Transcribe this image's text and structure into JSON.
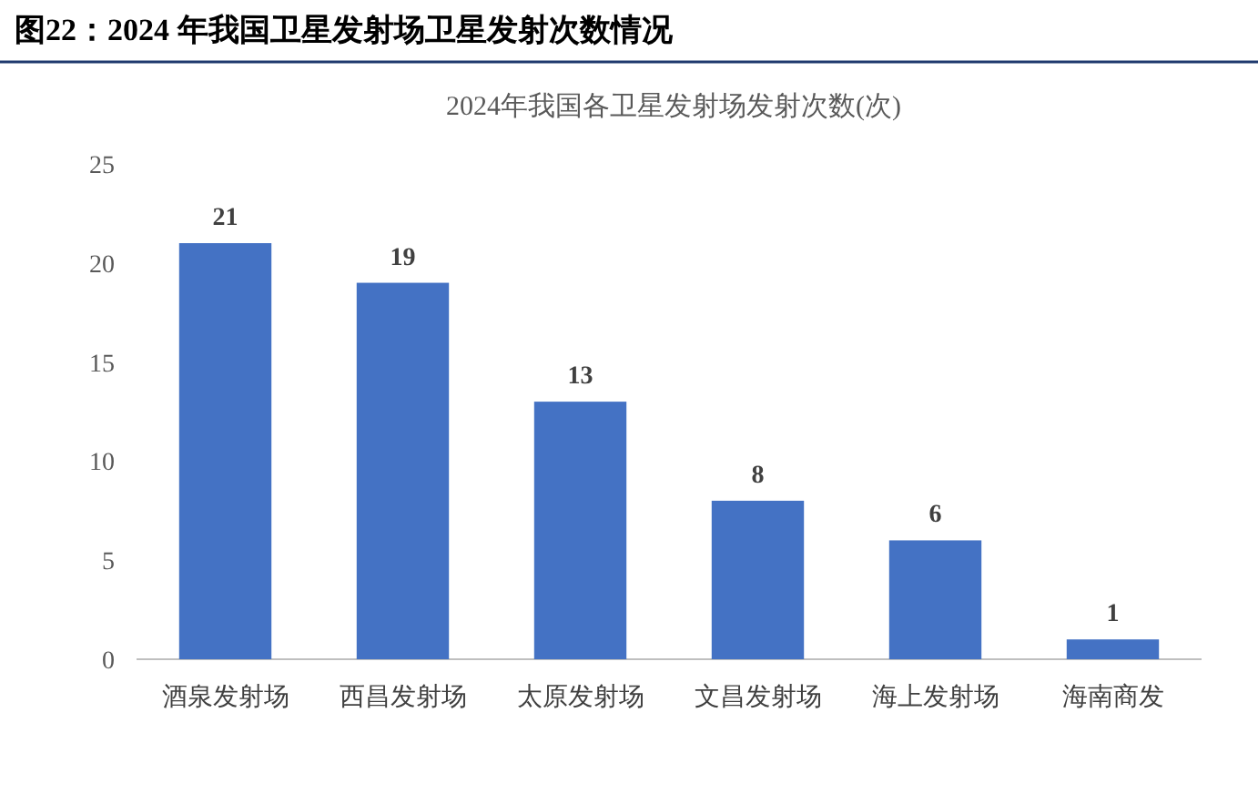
{
  "chart_data": {
    "type": "bar",
    "title": "图22：2024 年我国卫星发射场卫星发射次数情况",
    "subtitle": "2024年我国各卫星发射场发射次数(次)",
    "categories": [
      "酒泉发射场",
      "西昌发射场",
      "太原发射场",
      "文昌发射场",
      "海上发射场",
      "海南商发"
    ],
    "values": [
      21,
      19,
      13,
      8,
      6,
      1
    ],
    "color": "#4472c4",
    "ylim": [
      0,
      25
    ],
    "yticks": [
      0,
      5,
      10,
      15,
      20,
      25
    ],
    "data_labels": true
  }
}
